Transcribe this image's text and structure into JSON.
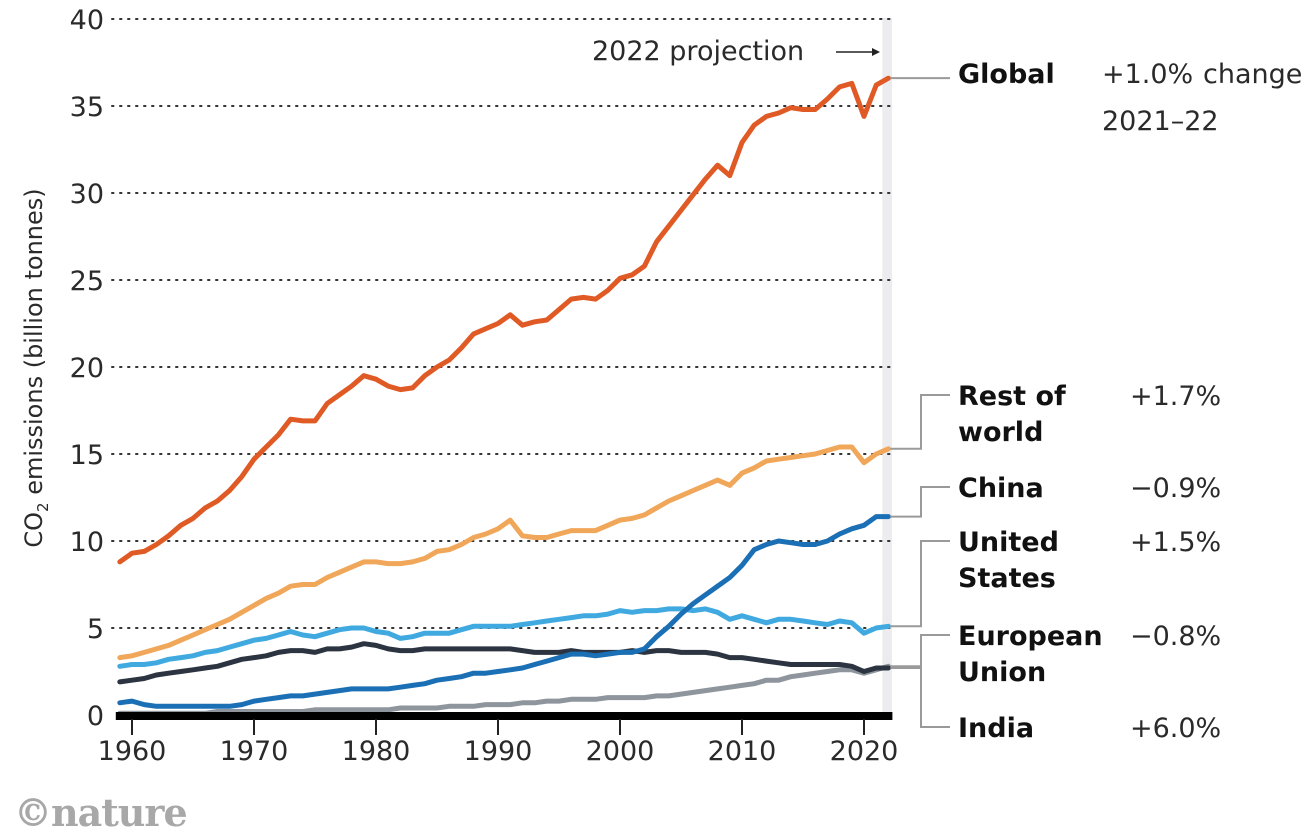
{
  "chart_data": {
    "type": "line",
    "title": "",
    "ylabel": "CO2 emissions (billion tonnes)",
    "ylabel_main": "CO",
    "ylabel_sub": "2",
    "ylabel_rest": " emissions (billion tonnes)",
    "xlabel": "",
    "ylim": [
      0,
      40
    ],
    "xlim": [
      1959,
      2022
    ],
    "yticks": [
      0,
      5,
      10,
      15,
      20,
      25,
      30,
      35,
      40
    ],
    "ytick_labels": [
      "0",
      "5",
      "10",
      "15",
      "20",
      "25",
      "30",
      "35",
      "40"
    ],
    "xticks": [
      1960,
      1970,
      1980,
      1990,
      2000,
      2010,
      2020
    ],
    "xtick_labels": [
      "1960",
      "1970",
      "1980",
      "1990",
      "2000",
      "2010",
      "2020"
    ],
    "grid": "horizontal-dotted",
    "projection_band": {
      "from": 2021.5,
      "to": 2022.3,
      "label": "2022 projection",
      "arrow": "→"
    },
    "legend_placement": "right",
    "change_header": "change",
    "change_period": "2021–22",
    "x": [
      1959,
      1960,
      1961,
      1962,
      1963,
      1964,
      1965,
      1966,
      1967,
      1968,
      1969,
      1970,
      1971,
      1972,
      1973,
      1974,
      1975,
      1976,
      1977,
      1978,
      1979,
      1980,
      1981,
      1982,
      1983,
      1984,
      1985,
      1986,
      1987,
      1988,
      1989,
      1990,
      1991,
      1992,
      1993,
      1994,
      1995,
      1996,
      1997,
      1998,
      1999,
      2000,
      2001,
      2002,
      2003,
      2004,
      2005,
      2006,
      2007,
      2008,
      2009,
      2010,
      2011,
      2012,
      2013,
      2014,
      2015,
      2016,
      2017,
      2018,
      2019,
      2020,
      2021,
      2022
    ],
    "series": [
      {
        "name": "Global",
        "label_lines": [
          "Global"
        ],
        "change": "+1.0%",
        "color": "#e05a25",
        "values": [
          8.8,
          9.3,
          9.4,
          9.8,
          10.3,
          10.9,
          11.3,
          11.9,
          12.3,
          12.9,
          13.7,
          14.7,
          15.4,
          16.1,
          17.0,
          16.9,
          16.9,
          17.9,
          18.4,
          18.9,
          19.5,
          19.3,
          18.9,
          18.7,
          18.8,
          19.5,
          20.0,
          20.4,
          21.1,
          21.9,
          22.2,
          22.5,
          23.0,
          22.4,
          22.6,
          22.7,
          23.3,
          23.9,
          24.0,
          23.9,
          24.4,
          25.1,
          25.3,
          25.8,
          27.2,
          28.1,
          29.0,
          29.9,
          30.8,
          31.6,
          31.0,
          32.9,
          33.9,
          34.4,
          34.6,
          34.9,
          34.8,
          34.8,
          35.4,
          36.1,
          36.3,
          34.4,
          36.2,
          36.6
        ]
      },
      {
        "name": "Rest of world",
        "label_lines": [
          "Rest of",
          "world"
        ],
        "change": "+1.7%",
        "color": "#f0a75a",
        "values": [
          3.3,
          3.4,
          3.6,
          3.8,
          4.0,
          4.3,
          4.6,
          4.9,
          5.2,
          5.5,
          5.9,
          6.3,
          6.7,
          7.0,
          7.4,
          7.5,
          7.5,
          7.9,
          8.2,
          8.5,
          8.8,
          8.8,
          8.7,
          8.7,
          8.8,
          9.0,
          9.4,
          9.5,
          9.8,
          10.2,
          10.4,
          10.7,
          11.2,
          10.3,
          10.2,
          10.2,
          10.4,
          10.6,
          10.6,
          10.6,
          10.9,
          11.2,
          11.3,
          11.5,
          11.9,
          12.3,
          12.6,
          12.9,
          13.2,
          13.5,
          13.2,
          13.9,
          14.2,
          14.6,
          14.7,
          14.8,
          14.9,
          15.0,
          15.2,
          15.4,
          15.4,
          14.5,
          15.0,
          15.3
        ]
      },
      {
        "name": "China",
        "label_lines": [
          "China"
        ],
        "change": "−0.9%",
        "color": "#1a6fb5",
        "values": [
          0.7,
          0.8,
          0.6,
          0.5,
          0.5,
          0.5,
          0.5,
          0.5,
          0.5,
          0.5,
          0.6,
          0.8,
          0.9,
          1.0,
          1.1,
          1.1,
          1.2,
          1.3,
          1.4,
          1.5,
          1.5,
          1.5,
          1.5,
          1.6,
          1.7,
          1.8,
          2.0,
          2.1,
          2.2,
          2.4,
          2.4,
          2.5,
          2.6,
          2.7,
          2.9,
          3.1,
          3.3,
          3.5,
          3.5,
          3.4,
          3.5,
          3.6,
          3.6,
          3.8,
          4.5,
          5.1,
          5.8,
          6.4,
          6.9,
          7.4,
          7.9,
          8.6,
          9.5,
          9.8,
          10.0,
          9.9,
          9.8,
          9.8,
          10.0,
          10.4,
          10.7,
          10.9,
          11.4,
          11.4
        ]
      },
      {
        "name": "United States",
        "label_lines": [
          "United",
          "States"
        ],
        "change": "+1.5%",
        "color": "#3fa9e0",
        "values": [
          2.8,
          2.9,
          2.9,
          3.0,
          3.2,
          3.3,
          3.4,
          3.6,
          3.7,
          3.9,
          4.1,
          4.3,
          4.4,
          4.6,
          4.8,
          4.6,
          4.5,
          4.7,
          4.9,
          5.0,
          5.0,
          4.8,
          4.7,
          4.4,
          4.5,
          4.7,
          4.7,
          4.7,
          4.9,
          5.1,
          5.1,
          5.1,
          5.1,
          5.2,
          5.3,
          5.4,
          5.5,
          5.6,
          5.7,
          5.7,
          5.8,
          6.0,
          5.9,
          6.0,
          6.0,
          6.1,
          6.1,
          6.0,
          6.1,
          5.9,
          5.5,
          5.7,
          5.5,
          5.3,
          5.5,
          5.5,
          5.4,
          5.3,
          5.2,
          5.4,
          5.3,
          4.7,
          5.0,
          5.1
        ]
      },
      {
        "name": "European Union",
        "label_lines": [
          "European",
          "Union"
        ],
        "change": "−0.8%",
        "color": "#2b3440",
        "values": [
          1.9,
          2.0,
          2.1,
          2.3,
          2.4,
          2.5,
          2.6,
          2.7,
          2.8,
          3.0,
          3.2,
          3.3,
          3.4,
          3.6,
          3.7,
          3.7,
          3.6,
          3.8,
          3.8,
          3.9,
          4.1,
          4.0,
          3.8,
          3.7,
          3.7,
          3.8,
          3.8,
          3.8,
          3.8,
          3.8,
          3.8,
          3.8,
          3.8,
          3.7,
          3.6,
          3.6,
          3.6,
          3.7,
          3.6,
          3.6,
          3.6,
          3.6,
          3.7,
          3.6,
          3.7,
          3.7,
          3.6,
          3.6,
          3.6,
          3.5,
          3.3,
          3.3,
          3.2,
          3.1,
          3.0,
          2.9,
          2.9,
          2.9,
          2.9,
          2.9,
          2.8,
          2.5,
          2.7,
          2.7
        ]
      },
      {
        "name": "India",
        "label_lines": [
          "India"
        ],
        "change": "+6.0%",
        "color": "#8e959d",
        "values": [
          0.1,
          0.1,
          0.1,
          0.1,
          0.1,
          0.1,
          0.1,
          0.1,
          0.2,
          0.2,
          0.2,
          0.2,
          0.2,
          0.2,
          0.2,
          0.2,
          0.3,
          0.3,
          0.3,
          0.3,
          0.3,
          0.3,
          0.3,
          0.4,
          0.4,
          0.4,
          0.4,
          0.5,
          0.5,
          0.5,
          0.6,
          0.6,
          0.6,
          0.7,
          0.7,
          0.8,
          0.8,
          0.9,
          0.9,
          0.9,
          1.0,
          1.0,
          1.0,
          1.0,
          1.1,
          1.1,
          1.2,
          1.3,
          1.4,
          1.5,
          1.6,
          1.7,
          1.8,
          2.0,
          2.0,
          2.2,
          2.3,
          2.4,
          2.5,
          2.6,
          2.6,
          2.4,
          2.6,
          2.8
        ]
      }
    ]
  },
  "branding": {
    "logo": "©nature"
  }
}
